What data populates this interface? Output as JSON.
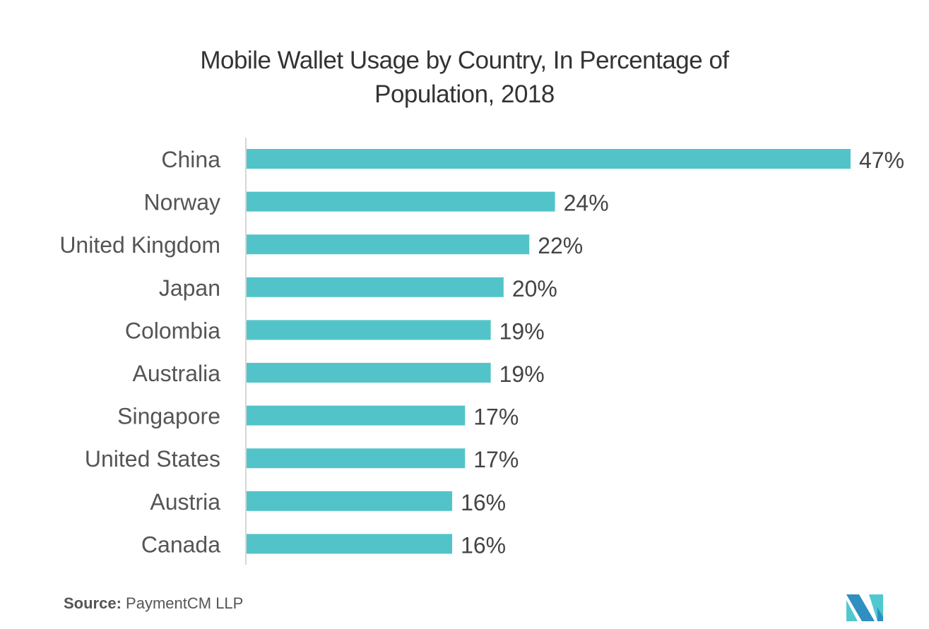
{
  "chart_data": {
    "type": "bar",
    "orientation": "horizontal",
    "title_lines": [
      "Mobile Wallet Usage by Country, In Percentage of",
      "Population, 2018"
    ],
    "categories": [
      "China",
      "Norway",
      "United Kingdom",
      "Japan",
      "Colombia",
      "Australia",
      "Singapore",
      "United States",
      "Austria",
      "Canada"
    ],
    "values": [
      47,
      24,
      22,
      20,
      19,
      19,
      17,
      17,
      16,
      16
    ],
    "value_labels": [
      "47%",
      "24%",
      "22%",
      "20%",
      "19%",
      "19%",
      "17%",
      "17%",
      "16%",
      "16%"
    ],
    "xlabel": "",
    "ylabel": "",
    "xlim": [
      0,
      47
    ],
    "grid": false,
    "bar_color": "#52c4c9",
    "axis_color": "#d6d6d6"
  },
  "source": {
    "label": "Source:",
    "text": "PaymentCM LLP"
  },
  "logo": {
    "colors": [
      "#2e8fc0",
      "#4fc9cf"
    ]
  }
}
